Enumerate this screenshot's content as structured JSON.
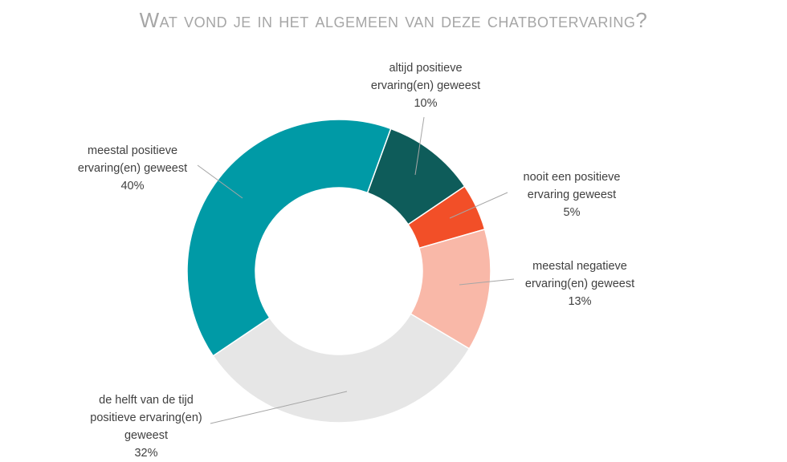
{
  "chart_data": {
    "type": "pie",
    "variant": "donut",
    "title": "Wat vond je in het algemeen van deze chatbotervaring?",
    "legend": "none",
    "slices": [
      {
        "label": [
          "altijd positieve",
          "ervaring(en) geweest"
        ],
        "value": 10,
        "value_label": "10%",
        "color": "#0e5c5a"
      },
      {
        "label": [
          "nooit een positieve",
          "ervaring geweest"
        ],
        "value": 5,
        "value_label": "5%",
        "color": "#f24f28"
      },
      {
        "label": [
          "meestal negatieve",
          "ervaring(en) geweest"
        ],
        "value": 13,
        "value_label": "13%",
        "color": "#f9b8a8"
      },
      {
        "label": [
          "de helft van de tijd",
          "positieve ervaring(en)",
          "geweest"
        ],
        "value": 32,
        "value_label": "32%",
        "color": "#e6e6e6"
      },
      {
        "label": [
          "meestal positieve",
          "ervaring(en) geweest"
        ],
        "value": 40,
        "value_label": "40%",
        "color": "#009aa6"
      }
    ]
  }
}
